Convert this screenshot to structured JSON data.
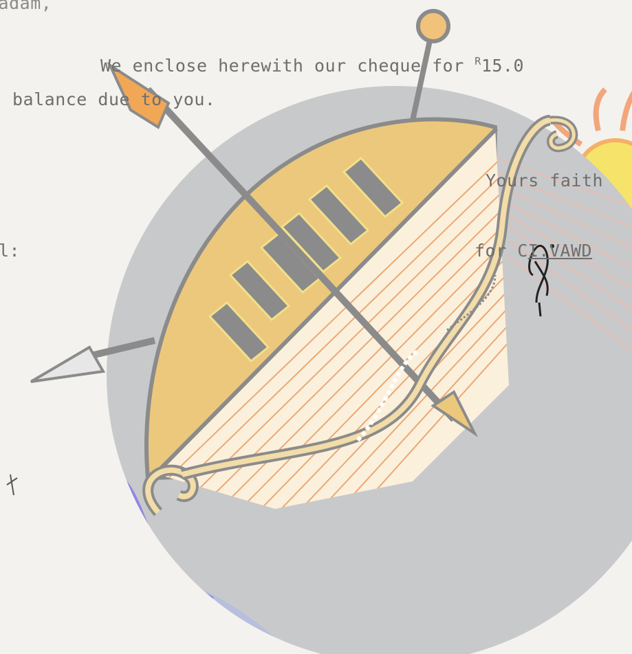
{
  "letter": {
    "salutation": "Madam,",
    "body_line1_prefix": "We enclose herewith our cheque for ",
    "currency_symbol": "R",
    "amount": "15.0",
    "body_line2": "balance due to you.",
    "closing": "Yours faith",
    "signature_for": "for C",
    "signature_name": "I.VAWD",
    "left_margin_label": "l:"
  },
  "colors": {
    "circle": "#c8c9ca",
    "shield": "#ecc87d",
    "outline": "#8b8b8b",
    "river": "#9b8fe8",
    "sun": "#f6e46a",
    "rays": "#f28d55"
  },
  "icons": [
    "bow-and-arrow-emblem",
    "sun-icon",
    "river-waves",
    "handwritten-signature"
  ]
}
